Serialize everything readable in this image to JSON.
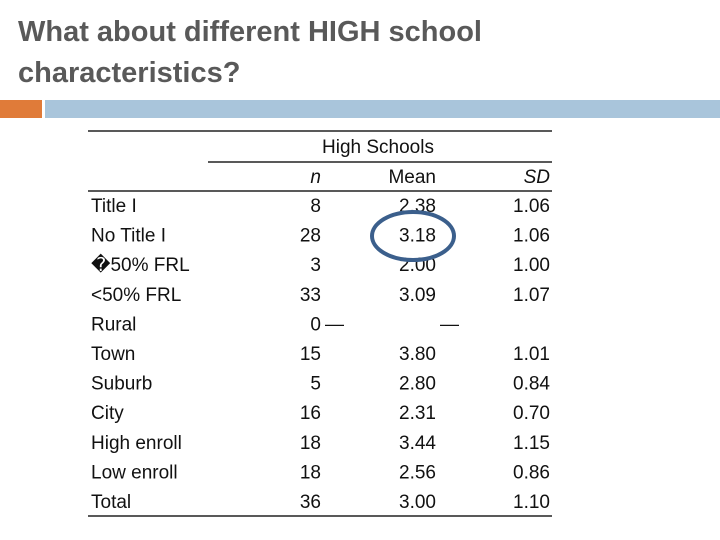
{
  "title": "What about different HIGH school characteristics?",
  "table": {
    "group_header": "High Schools",
    "headers": [
      "n",
      "Mean",
      "SD"
    ],
    "rows": [
      [
        "Title I",
        "8",
        "2.38",
        "1.06"
      ],
      [
        "No Title I",
        "28",
        "3.18",
        "1.06"
      ],
      [
        "�50% FRL",
        "3",
        "2.00",
        "1.00"
      ],
      [
        "<50% FRL",
        "33",
        "3.09",
        "1.07"
      ],
      [
        "Rural",
        "0",
        "—",
        "—"
      ],
      [
        "Town",
        "15",
        "3.80",
        "1.01"
      ],
      [
        "Suburb",
        "5",
        "2.80",
        "0.84"
      ],
      [
        "City",
        "16",
        "2.31",
        "0.70"
      ],
      [
        "High enroll",
        "18",
        "3.44",
        "1.15"
      ],
      [
        "Low enroll",
        "18",
        "2.56",
        "0.86"
      ],
      [
        "Total",
        "36",
        "3.00",
        "1.10"
      ]
    ]
  }
}
